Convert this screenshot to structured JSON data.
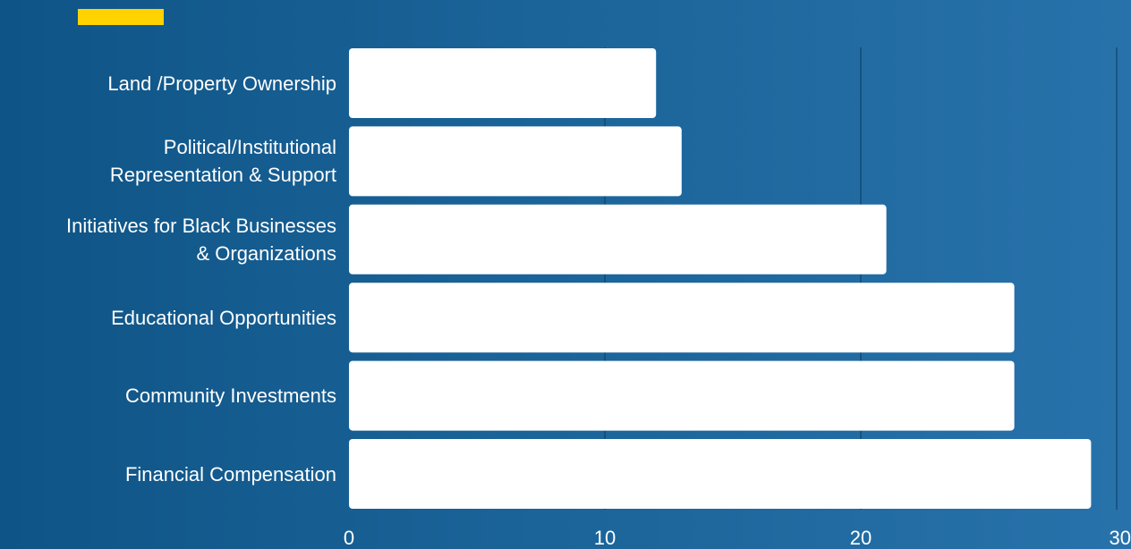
{
  "colors": {
    "accent": "#ffd200",
    "bar": "#ffffff",
    "grid": "#0c3b5e",
    "text": "#ffffff"
  },
  "chart_data": {
    "type": "bar",
    "orientation": "horizontal",
    "title": "",
    "xlabel": "",
    "ylabel": "",
    "categories": [
      "Land /Property Ownership",
      "Political/Institutional\nRepresentation & Support",
      "Initiatives for Black Businesses\n& Organizations",
      "Educational Opportunities",
      "Community Investments",
      "Financial Compensation"
    ],
    "values": [
      12,
      13,
      21,
      26,
      26,
      29
    ],
    "xlim": [
      0,
      30
    ],
    "xticks": [
      0,
      10,
      20,
      30
    ],
    "grid": true
  }
}
